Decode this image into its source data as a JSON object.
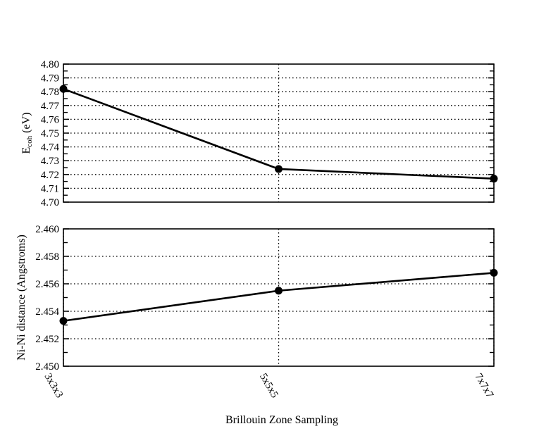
{
  "figure": {
    "background_color": "#ffffff",
    "line_color": "#000000",
    "marker_color": "#000000",
    "text_color": "#000000"
  },
  "xlabel": "Brillouin Zone Sampling",
  "categories": [
    "3x3x3",
    "5x5x5",
    "7x7x7"
  ],
  "chart_data": [
    {
      "type": "line",
      "panel": "top",
      "x": [
        "3x3x3",
        "5x5x5",
        "7x7x7"
      ],
      "series": [
        {
          "name": "cohesive-energy",
          "values": [
            4.782,
            4.724,
            4.717
          ]
        }
      ],
      "ylabel": "Ecoh (eV)",
      "ylabel_segments": [
        {
          "text": "E"
        },
        {
          "text": "coh",
          "sub": true
        },
        {
          "text": " (eV)"
        }
      ],
      "ylim": [
        4.7,
        4.8
      ],
      "ytick_major": 0.01,
      "ytick_minor": 0.005,
      "ytick_decimals": 2,
      "ytick_labels": [
        "4.70",
        "4.71",
        "4.72",
        "4.73",
        "4.74",
        "4.75",
        "4.76",
        "4.77",
        "4.78",
        "4.79",
        "4.80"
      ],
      "grid": "dotted",
      "grid_horizontal": true,
      "grid_vertical": true,
      "marker": "filled-circle",
      "line_style": "solid",
      "legend": "none",
      "x_tick_labels_visible": false
    },
    {
      "type": "line",
      "panel": "bottom",
      "x": [
        "3x3x3",
        "5x5x5",
        "7x7x7"
      ],
      "series": [
        {
          "name": "ni-ni-distance",
          "values": [
            2.4533,
            2.4555,
            2.4568
          ]
        }
      ],
      "ylabel": "Ni-Ni distance (Angstroms)",
      "ylabel_segments": [
        {
          "text": "Ni-Ni distance (Angstroms)"
        }
      ],
      "ylim": [
        2.45,
        2.46
      ],
      "ytick_major": 0.002,
      "ytick_minor": 0.001,
      "ytick_decimals": 3,
      "ytick_labels": [
        "2.450",
        "2.452",
        "2.454",
        "2.456",
        "2.458",
        "2.460"
      ],
      "grid": "dotted",
      "grid_horizontal": true,
      "grid_vertical": true,
      "marker": "filled-circle",
      "line_style": "solid",
      "legend": "none",
      "x_tick_labels_visible": true
    }
  ]
}
